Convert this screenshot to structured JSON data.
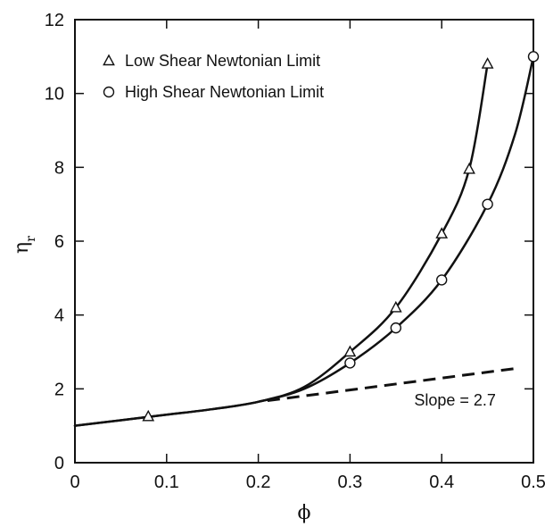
{
  "chart_data": {
    "type": "scatter",
    "title": "",
    "xlabel": "ϕ",
    "ylabel": "η",
    "ylabel_subscript": "r",
    "xlim": [
      0,
      0.5
    ],
    "ylim": [
      0,
      12
    ],
    "x_ticks": [
      "0",
      "0.1",
      "0.2",
      "0.3",
      "0.4",
      "0.5"
    ],
    "y_ticks": [
      "0",
      "2",
      "4",
      "6",
      "8",
      "10",
      "12"
    ],
    "grid": false,
    "legend_position": "top-left",
    "series": [
      {
        "name": "Low Shear Newtonian Limit",
        "marker": "triangle",
        "points": [
          {
            "x": 0.08,
            "y": 1.25
          },
          {
            "x": 0.3,
            "y": 3.0
          },
          {
            "x": 0.35,
            "y": 4.2
          },
          {
            "x": 0.4,
            "y": 6.2
          },
          {
            "x": 0.43,
            "y": 7.95
          },
          {
            "x": 0.45,
            "y": 10.8
          }
        ],
        "curve": [
          {
            "x": 0.0,
            "y": 1.0
          },
          {
            "x": 0.05,
            "y": 1.15
          },
          {
            "x": 0.1,
            "y": 1.3
          },
          {
            "x": 0.15,
            "y": 1.45
          },
          {
            "x": 0.2,
            "y": 1.65
          },
          {
            "x": 0.25,
            "y": 2.05
          },
          {
            "x": 0.3,
            "y": 3.0
          },
          {
            "x": 0.35,
            "y": 4.2
          },
          {
            "x": 0.4,
            "y": 6.2
          },
          {
            "x": 0.43,
            "y": 7.95
          },
          {
            "x": 0.45,
            "y": 10.8
          }
        ]
      },
      {
        "name": "High Shear Newtonian Limit",
        "marker": "circle",
        "points": [
          {
            "x": 0.3,
            "y": 2.7
          },
          {
            "x": 0.35,
            "y": 3.65
          },
          {
            "x": 0.4,
            "y": 4.95
          },
          {
            "x": 0.45,
            "y": 7.0
          },
          {
            "x": 0.5,
            "y": 11.0
          }
        ],
        "curve": [
          {
            "x": 0.0,
            "y": 1.0
          },
          {
            "x": 0.05,
            "y": 1.15
          },
          {
            "x": 0.1,
            "y": 1.3
          },
          {
            "x": 0.15,
            "y": 1.45
          },
          {
            "x": 0.2,
            "y": 1.65
          },
          {
            "x": 0.25,
            "y": 2.0
          },
          {
            "x": 0.3,
            "y": 2.7
          },
          {
            "x": 0.35,
            "y": 3.65
          },
          {
            "x": 0.4,
            "y": 4.95
          },
          {
            "x": 0.45,
            "y": 7.0
          },
          {
            "x": 0.48,
            "y": 8.9
          },
          {
            "x": 0.5,
            "y": 11.0
          }
        ]
      }
    ],
    "slope_line": {
      "x": [
        0.21,
        0.48
      ],
      "y": [
        1.68,
        2.55
      ]
    },
    "annotation": "Slope = 2.7"
  }
}
